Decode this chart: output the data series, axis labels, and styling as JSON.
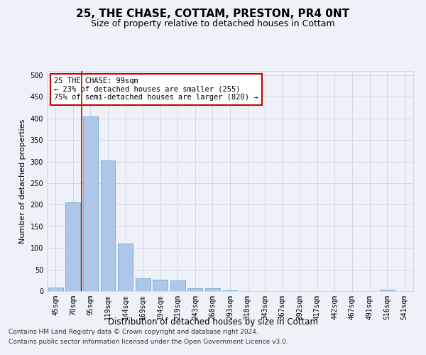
{
  "title": "25, THE CHASE, COTTAM, PRESTON, PR4 0NT",
  "subtitle": "Size of property relative to detached houses in Cottam",
  "xlabel": "Distribution of detached houses by size in Cottam",
  "ylabel": "Number of detached properties",
  "categories": [
    "45sqm",
    "70sqm",
    "95sqm",
    "119sqm",
    "144sqm",
    "169sqm",
    "194sqm",
    "219sqm",
    "243sqm",
    "268sqm",
    "293sqm",
    "318sqm",
    "343sqm",
    "367sqm",
    "392sqm",
    "417sqm",
    "442sqm",
    "467sqm",
    "491sqm",
    "516sqm",
    "541sqm"
  ],
  "values": [
    8,
    205,
    405,
    302,
    111,
    29,
    26,
    25,
    7,
    6,
    2,
    0,
    0,
    0,
    0,
    0,
    0,
    0,
    0,
    4,
    0
  ],
  "bar_color": "#aec6e8",
  "bar_edge_color": "#5a9fd4",
  "grid_color": "#d0d8e8",
  "vline_color": "#cc0000",
  "annotation_text": "25 THE CHASE: 99sqm\n← 23% of detached houses are smaller (255)\n75% of semi-detached houses are larger (820) →",
  "annotation_box_color": "#ffffff",
  "annotation_box_edge": "#cc0000",
  "footer_line1": "Contains HM Land Registry data © Crown copyright and database right 2024.",
  "footer_line2": "Contains public sector information licensed under the Open Government Licence v3.0.",
  "ylim": [
    0,
    510
  ],
  "yticks": [
    0,
    50,
    100,
    150,
    200,
    250,
    300,
    350,
    400,
    450,
    500
  ],
  "title_fontsize": 11,
  "subtitle_fontsize": 9,
  "tick_fontsize": 7,
  "ylabel_fontsize": 8,
  "xlabel_fontsize": 8.5,
  "annotation_fontsize": 7.5,
  "footer_fontsize": 6.5,
  "background_color": "#eef2f8"
}
